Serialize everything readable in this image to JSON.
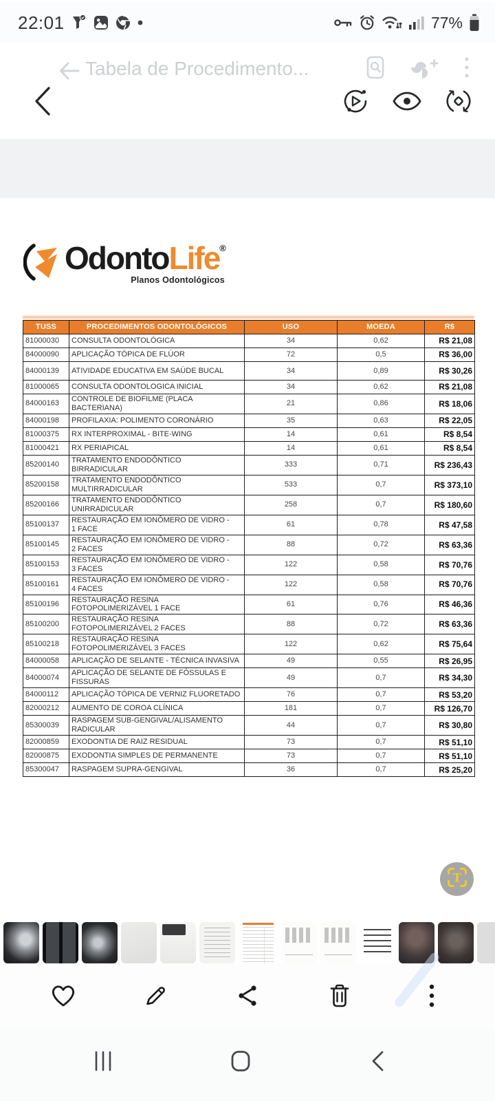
{
  "colors": {
    "accent_orange": "#e87e2b",
    "logo_orange": "#f08a2e",
    "ocr_yellow": "#f2ca27",
    "ocr_circle_gray": "#a6a6a6"
  },
  "status_bar": {
    "time": "22:01",
    "battery": "77%",
    "left_icons": [
      "notification-badge-icon",
      "gallery-icon",
      "chrome-icon",
      "dot-icon"
    ],
    "right_icons": [
      "key-icon",
      "alarm-icon",
      "wifi-icon",
      "signal-icon",
      "battery-icon"
    ]
  },
  "ghost_bar": {
    "title": "Tabela de Procedimento...",
    "icons": [
      "back-arrow-icon",
      "document-scan-icon",
      "photos-add-icon",
      "more-icon"
    ]
  },
  "toolbar": {
    "icons": [
      "back-chevron-icon",
      "motion-photo-icon",
      "eye-icon",
      "rotate-icon"
    ]
  },
  "document": {
    "logo": {
      "odonto": "Odonto",
      "life": "Life",
      "reg": "®",
      "subtitle": "Planos Odontológicos"
    },
    "table": {
      "headers": [
        "TUSS",
        "PROCEDIMENTOS ODONTOLÓGICOS",
        "USO",
        "MOEDA",
        "R$"
      ],
      "rows": [
        {
          "code": "81000030",
          "name": "CONSULTA ODONTOLÓGICA",
          "uso": "34",
          "moeda": "0,62",
          "price": "R$ 21,08",
          "two": false
        },
        {
          "code": "84000090",
          "name": "APLICAÇÃO TÓPICA DE FLÚOR",
          "uso": "72",
          "moeda": "0,5",
          "price": "R$ 36,00",
          "two": false
        },
        {
          "code": "84000139",
          "name": "ATIVIDADE EDUCATIVA EM SAÚDE BUCAL",
          "uso": "34",
          "moeda": "0,89",
          "price": "R$ 30,26",
          "two": true
        },
        {
          "code": "81000065",
          "name": "CONSULTA ODONTOLOGICA INICIAL",
          "uso": "34",
          "moeda": "0,62",
          "price": "R$ 21,08",
          "two": false
        },
        {
          "code": "84000163",
          "name": "CONTROLE DE BIOFILME (PLACA BACTERIANA)",
          "uso": "21",
          "moeda": "0,86",
          "price": "R$ 18,06",
          "two": true
        },
        {
          "code": "84000198",
          "name": "PROFILAXIA: POLIMENTO CORONÁRIO",
          "uso": "35",
          "moeda": "0,63",
          "price": "R$ 22,05",
          "two": false
        },
        {
          "code": "81000375",
          "name": "RX INTERPROXIMAL - BITE-WING",
          "uso": "14",
          "moeda": "0,61",
          "price": "R$ 8,54",
          "two": false
        },
        {
          "code": "81000421",
          "name": "RX PERIAPICAL",
          "uso": "14",
          "moeda": "0,61",
          "price": "R$ 8,54",
          "two": false
        },
        {
          "code": "85200140",
          "name": "TRATAMENTO ENDODÔNTICO BIRRADICULAR",
          "uso": "333",
          "moeda": "0,71",
          "price": "R$ 236,43",
          "two": true
        },
        {
          "code": "85200158",
          "name": "TRATAMENTO ENDODÔNTICO MULTIRRADICULAR",
          "uso": "533",
          "moeda": "0,7",
          "price": "R$ 373,10",
          "two": true
        },
        {
          "code": "85200166",
          "name": "TRATAMENTO ENDODÔNTICO UNIRRADICULAR",
          "uso": "258",
          "moeda": "0,7",
          "price": "R$ 180,60",
          "two": true
        },
        {
          "code": "85100137",
          "name": "RESTAURAÇÃO EM IONÔMERO DE VIDRO - 1 FACE",
          "uso": "61",
          "moeda": "0,78",
          "price": "R$ 47,58",
          "two": true
        },
        {
          "code": "85100145",
          "name": "RESTAURAÇÃO EM IONÔMERO DE VIDRO - 2 FACES",
          "uso": "88",
          "moeda": "0,72",
          "price": "R$ 63,36",
          "two": true
        },
        {
          "code": "85100153",
          "name": "RESTAURAÇÃO EM IONÔMERO DE VIDRO - 3 FACES",
          "uso": "122",
          "moeda": "0,58",
          "price": "R$ 70,76",
          "two": true
        },
        {
          "code": "85100161",
          "name": "RESTAURAÇÃO EM IONÔMERO DE VIDRO - 4 FACES",
          "uso": "122",
          "moeda": "0,58",
          "price": "R$ 70,76",
          "two": true
        },
        {
          "code": "85100196",
          "name": "RESTAURAÇÃO RESINA FOTOPOLIMERIZÁVEL 1 FACE",
          "uso": "61",
          "moeda": "0,76",
          "price": "R$ 46,36",
          "two": true
        },
        {
          "code": "85100200",
          "name": "RESTAURAÇÃO RESINA FOTOPOLIMERIZÁVEL 2 FACES",
          "uso": "88",
          "moeda": "0,72",
          "price": "R$ 63,36",
          "two": true
        },
        {
          "code": "85100218",
          "name": "RESTAURAÇÃO RESINA FOTOPOLIMERIZÁVEL 3 FACES",
          "uso": "122",
          "moeda": "0,62",
          "price": "R$ 75,64",
          "two": true
        },
        {
          "code": "84000058",
          "name": "APLICAÇÃO DE SELANTE - TÉCNICA INVASIVA",
          "uso": "49",
          "moeda": "0,55",
          "price": "R$ 26,95",
          "two": false
        },
        {
          "code": "84000074",
          "name": "APLICAÇÃO DE SELANTE DE FÓSSULAS E FISSURAS",
          "uso": "49",
          "moeda": "0,7",
          "price": "R$ 34,30",
          "two": true
        },
        {
          "code": "84000112",
          "name": "APLICAÇÃO TÓPICA DE VERNIZ FLUORETADO",
          "uso": "76",
          "moeda": "0,7",
          "price": "R$ 53,20",
          "two": false
        },
        {
          "code": "82000212",
          "name": "AUMENTO DE COROA CLÍNICA",
          "uso": "181",
          "moeda": "0,7",
          "price": "R$ 126,70",
          "two": false
        },
        {
          "code": "85300039",
          "name": "RASPAGEM SUB-GENGIVAL/ALISAMENTO RADICULAR",
          "uso": "44",
          "moeda": "0,7",
          "price": "R$ 30,80",
          "two": true
        },
        {
          "code": "82000859",
          "name": "EXODONTIA DE RAIZ RESIDUAL",
          "uso": "73",
          "moeda": "0,7",
          "price": "R$ 51,10",
          "two": false
        },
        {
          "code": "82000875",
          "name": "EXODONTIA SIMPLES DE PERMANENTE",
          "uso": "73",
          "moeda": "0,7",
          "price": "R$ 51,10",
          "two": false
        },
        {
          "code": "85300047",
          "name": "RASPAGEM SUPRA-GENGIVAL",
          "uso": "36",
          "moeda": "0,7",
          "price": "R$ 25,20",
          "two": false
        }
      ]
    }
  },
  "ocr_button": {
    "icon": "text-scan-icon"
  },
  "filmstrip": {
    "thumbs": [
      {
        "kind": "xray-skull",
        "selected": false
      },
      {
        "kind": "xray-filmstrip",
        "selected": false
      },
      {
        "kind": "xray-skull-2",
        "selected": false
      },
      {
        "kind": "document-gray",
        "selected": false
      },
      {
        "kind": "document-dark-header",
        "selected": false
      },
      {
        "kind": "receipt",
        "selected": false
      },
      {
        "kind": "procedures-table",
        "selected": true
      },
      {
        "kind": "dental-chart",
        "selected": false
      },
      {
        "kind": "dental-chart",
        "selected": false
      },
      {
        "kind": "text-document",
        "selected": false
      },
      {
        "kind": "selfie-photo",
        "selected": false
      },
      {
        "kind": "group-photo",
        "selected": false
      },
      {
        "kind": "group-photo-2",
        "selected": false
      }
    ]
  },
  "action_bar": {
    "icons": [
      "favorite",
      "edit",
      "share",
      "delete",
      "more"
    ]
  },
  "nav_bar": {
    "icons": [
      "recents",
      "home",
      "back"
    ]
  }
}
